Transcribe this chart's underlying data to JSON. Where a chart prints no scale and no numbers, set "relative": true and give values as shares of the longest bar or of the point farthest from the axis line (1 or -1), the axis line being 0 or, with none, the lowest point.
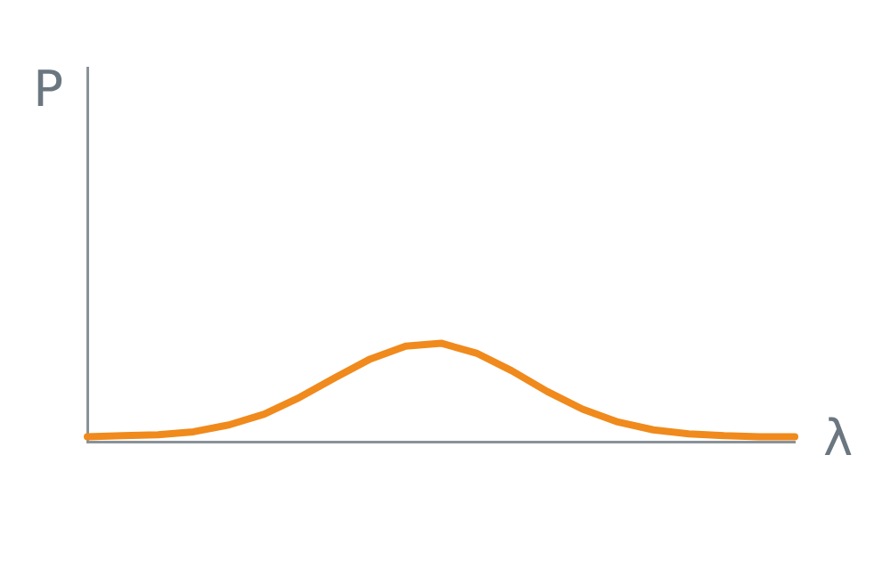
{
  "chart_data": {
    "type": "line",
    "relative": true,
    "xlabel": "λ",
    "ylabel": "P",
    "grid": false,
    "legend": false,
    "marker": "none",
    "line_style": "solid",
    "categories": [
      null,
      null,
      null,
      null,
      null,
      null,
      null,
      null,
      null,
      null,
      null,
      null,
      null,
      null,
      null,
      null,
      null,
      null,
      null,
      null,
      null
    ],
    "series": [
      {
        "color": "#f08a1c",
        "values": [
          0.05,
          0.06,
          0.07,
          0.1,
          0.17,
          0.28,
          0.45,
          0.65,
          0.84,
          0.97,
          1,
          0.9,
          0.72,
          0.51,
          0.33,
          0.2,
          0.12,
          0.08,
          0.06,
          0.05,
          0.05
        ]
      }
    ]
  }
}
